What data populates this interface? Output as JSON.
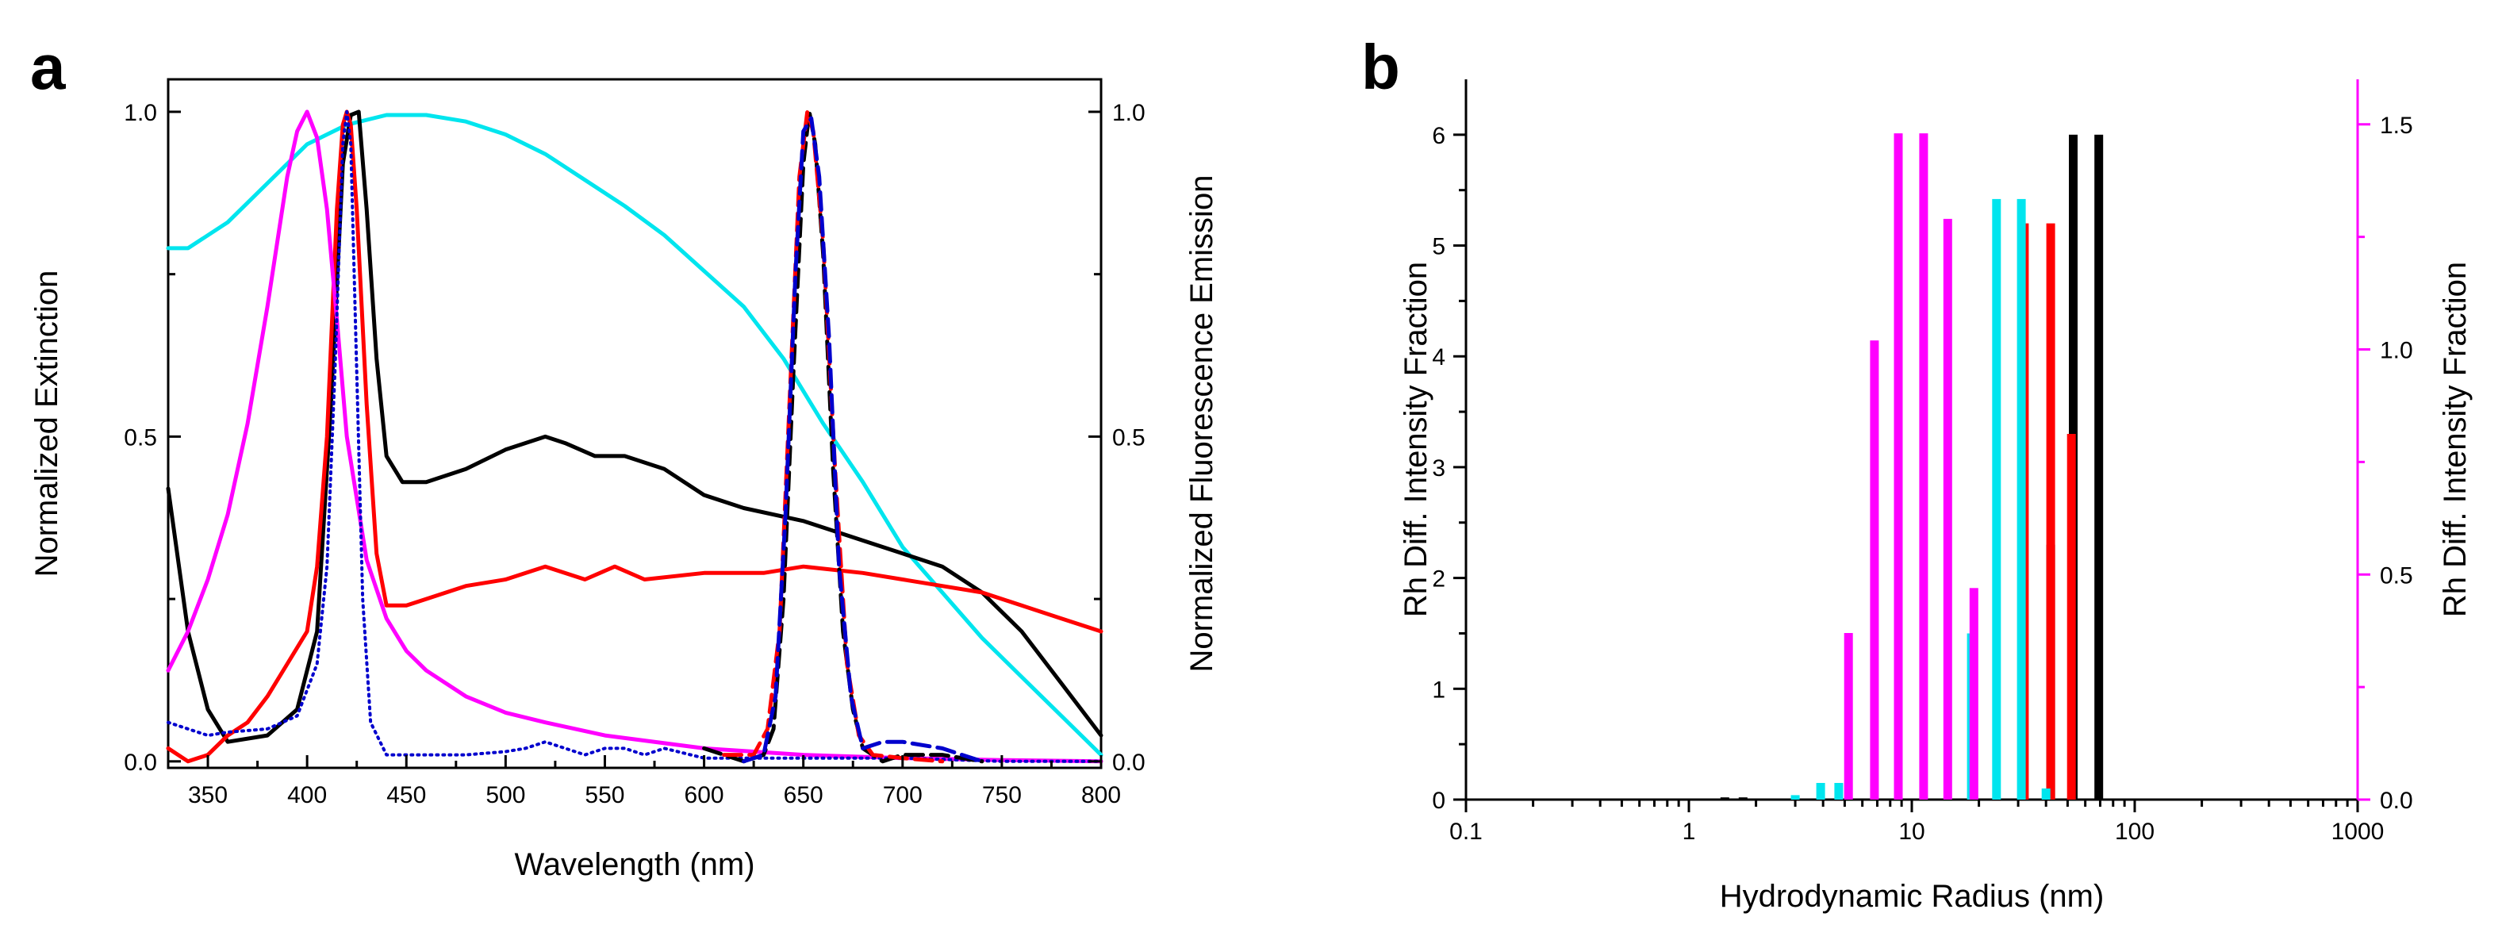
{
  "chart_data": [
    {
      "panel": "a",
      "type": "line",
      "xlabel": "Wavelength (nm)",
      "ylabel": "Normalized Extinction",
      "y2label": "Normalized Fluorescence Emission",
      "xlim": [
        330,
        800
      ],
      "ylim": [
        -0.01,
        1.05
      ],
      "y2lim": [
        -0.01,
        1.05
      ],
      "xticks": [
        350,
        400,
        450,
        500,
        550,
        600,
        650,
        700,
        750,
        800
      ],
      "yticks": [
        0.0,
        0.5,
        1.0
      ],
      "ytick_labels": [
        "0.0",
        "0.5",
        "1.0"
      ],
      "y2ticks": [
        0.0,
        0.5,
        1.0
      ],
      "y2tick_labels": [
        "0.0",
        "0.5",
        "1.0"
      ],
      "series": [
        {
          "name": "cyan extinction",
          "color": "#00e5ee",
          "style": "solid",
          "x": [
            330,
            340,
            360,
            380,
            400,
            420,
            440,
            460,
            480,
            500,
            520,
            540,
            560,
            580,
            600,
            620,
            640,
            660,
            680,
            700,
            720,
            740,
            760,
            780,
            800
          ],
          "y": [
            0.79,
            0.79,
            0.83,
            0.89,
            0.95,
            0.98,
            0.995,
            0.995,
            0.985,
            0.965,
            0.935,
            0.895,
            0.855,
            0.81,
            0.755,
            0.7,
            0.62,
            0.52,
            0.43,
            0.33,
            0.26,
            0.19,
            0.13,
            0.07,
            0.01
          ]
        },
        {
          "name": "black extinction",
          "color": "#000000",
          "style": "solid",
          "x": [
            330,
            340,
            350,
            360,
            380,
            395,
            405,
            412,
            418,
            422,
            426,
            430,
            435,
            440,
            448,
            460,
            480,
            500,
            520,
            530,
            545,
            560,
            580,
            600,
            620,
            650,
            680,
            700,
            720,
            740,
            760,
            780,
            800
          ],
          "y": [
            0.42,
            0.2,
            0.08,
            0.03,
            0.04,
            0.08,
            0.2,
            0.55,
            0.92,
            0.995,
            1.0,
            0.85,
            0.62,
            0.47,
            0.43,
            0.43,
            0.45,
            0.48,
            0.5,
            0.49,
            0.47,
            0.47,
            0.45,
            0.41,
            0.39,
            0.37,
            0.34,
            0.32,
            0.3,
            0.26,
            0.2,
            0.12,
            0.04
          ]
        },
        {
          "name": "red extinction",
          "color": "#ff0000",
          "style": "solid",
          "x": [
            330,
            340,
            350,
            360,
            370,
            380,
            390,
            400,
            405,
            410,
            415,
            418,
            420,
            422,
            425,
            430,
            435,
            440,
            450,
            460,
            480,
            500,
            520,
            540,
            555,
            570,
            600,
            630,
            650,
            680,
            700,
            720,
            740,
            760,
            780,
            800
          ],
          "y": [
            0.02,
            0.0,
            0.01,
            0.04,
            0.06,
            0.1,
            0.15,
            0.2,
            0.3,
            0.5,
            0.85,
            0.98,
            1.0,
            0.98,
            0.85,
            0.55,
            0.32,
            0.24,
            0.24,
            0.25,
            0.27,
            0.28,
            0.3,
            0.28,
            0.3,
            0.28,
            0.29,
            0.29,
            0.3,
            0.29,
            0.28,
            0.27,
            0.26,
            0.24,
            0.22,
            0.2
          ]
        },
        {
          "name": "magenta extinction",
          "color": "#ff00ff",
          "style": "solid",
          "x": [
            330,
            340,
            350,
            360,
            370,
            380,
            390,
            395,
            400,
            405,
            410,
            415,
            420,
            430,
            440,
            450,
            460,
            480,
            500,
            520,
            550,
            600,
            650,
            700,
            750,
            800
          ],
          "y": [
            0.14,
            0.2,
            0.28,
            0.38,
            0.52,
            0.7,
            0.9,
            0.97,
            1.0,
            0.96,
            0.85,
            0.68,
            0.5,
            0.31,
            0.22,
            0.17,
            0.14,
            0.1,
            0.075,
            0.06,
            0.04,
            0.02,
            0.01,
            0.005,
            0.002,
            0.0
          ]
        },
        {
          "name": "blue dotted extinction",
          "color": "#0000cd",
          "style": "dotted",
          "x": [
            330,
            340,
            350,
            360,
            380,
            395,
            405,
            410,
            414,
            418,
            420,
            422,
            425,
            428,
            432,
            440,
            460,
            480,
            500,
            510,
            520,
            530,
            540,
            550,
            560,
            570,
            580,
            600,
            620,
            640,
            660,
            680,
            700,
            750,
            800
          ],
          "y": [
            0.06,
            0.05,
            0.04,
            0.045,
            0.05,
            0.07,
            0.15,
            0.3,
            0.6,
            0.95,
            1.0,
            0.95,
            0.6,
            0.25,
            0.06,
            0.01,
            0.01,
            0.01,
            0.015,
            0.02,
            0.03,
            0.02,
            0.01,
            0.02,
            0.02,
            0.01,
            0.02,
            0.005,
            0.005,
            0.005,
            0.005,
            0.005,
            0.005,
            0.0,
            0.0
          ]
        },
        {
          "name": "black dashed emission",
          "color": "#000000",
          "style": "dashed",
          "axis": "y2",
          "x": [
            600,
            620,
            630,
            635,
            640,
            645,
            650,
            653,
            656,
            660,
            665,
            670,
            675,
            680,
            690,
            700,
            710,
            720,
            740
          ],
          "y": [
            0.02,
            0.0,
            0.01,
            0.05,
            0.25,
            0.6,
            0.92,
            1.0,
            0.95,
            0.78,
            0.45,
            0.2,
            0.08,
            0.02,
            0.0,
            0.01,
            0.01,
            0.01,
            0.0
          ]
        },
        {
          "name": "red dashed emission",
          "color": "#ff0000",
          "style": "dashed",
          "axis": "y2",
          "x": [
            610,
            625,
            632,
            638,
            643,
            648,
            652,
            655,
            660,
            666,
            672,
            678,
            685,
            700,
            720
          ],
          "y": [
            0.01,
            0.01,
            0.05,
            0.2,
            0.55,
            0.9,
            1.0,
            0.97,
            0.8,
            0.45,
            0.15,
            0.04,
            0.01,
            0.005,
            0.0
          ]
        },
        {
          "name": "blue dashed emission",
          "color": "#0000cd",
          "style": "dashed",
          "axis": "y2",
          "x": [
            620,
            630,
            636,
            641,
            646,
            650,
            654,
            658,
            663,
            668,
            674,
            680,
            690,
            700,
            720,
            740
          ],
          "y": [
            0.0,
            0.01,
            0.1,
            0.38,
            0.75,
            0.97,
            0.99,
            0.9,
            0.65,
            0.3,
            0.1,
            0.02,
            0.03,
            0.03,
            0.02,
            0.0
          ]
        }
      ]
    },
    {
      "panel": "b",
      "type": "bar",
      "xscale": "log",
      "xlabel": "Hydrodynamic Radius (nm)",
      "ylabel": "Rh Diff. Intensity Fraction",
      "y2label": "Rh Diff. Intensity Fraction",
      "y2label_color": "#ff00ff",
      "xlim": [
        0.1,
        1000
      ],
      "ylim": [
        0,
        6.5
      ],
      "y2lim": [
        0,
        1.6
      ],
      "xticks": [
        0.1,
        1,
        10,
        100,
        1000
      ],
      "xtick_labels": [
        "0.1",
        "1",
        "10",
        "100",
        "1000"
      ],
      "yticks": [
        0,
        1,
        2,
        3,
        4,
        5,
        6
      ],
      "ytick_labels": [
        "0",
        "1",
        "2",
        "3",
        "4",
        "5",
        "6"
      ],
      "y2ticks": [
        0.0,
        0.5,
        1.0,
        1.5
      ],
      "y2tick_labels": [
        "0.0",
        "0.5",
        "1.0",
        "1.5"
      ],
      "series": [
        {
          "name": "black",
          "color": "#000000",
          "axis": "y",
          "x": [
            1.45,
            1.75,
            42,
            53,
            69
          ],
          "y": [
            0.02,
            0.02,
            2.3,
            6.0,
            6.0
          ]
        },
        {
          "name": "red",
          "color": "#ff0000",
          "axis": "y",
          "x": [
            32,
            42,
            52
          ],
          "y": [
            5.2,
            5.2,
            3.3
          ]
        },
        {
          "name": "cyan",
          "color": "#00e5ee",
          "axis": "y",
          "x": [
            3.0,
            3.9,
            4.7,
            18.5,
            24,
            31,
            40
          ],
          "y": [
            0.04,
            0.15,
            0.15,
            1.5,
            5.42,
            5.42,
            0.1
          ]
        },
        {
          "name": "magenta",
          "color": "#ff00ff",
          "axis": "y2",
          "x": [
            5.2,
            6.8,
            8.7,
            11.3,
            14.5,
            19
          ],
          "y": [
            0.37,
            1.02,
            1.48,
            1.48,
            1.29,
            0.47
          ]
        }
      ]
    }
  ],
  "panels": {
    "a": {
      "letter": "a"
    },
    "b": {
      "letter": "b"
    }
  }
}
